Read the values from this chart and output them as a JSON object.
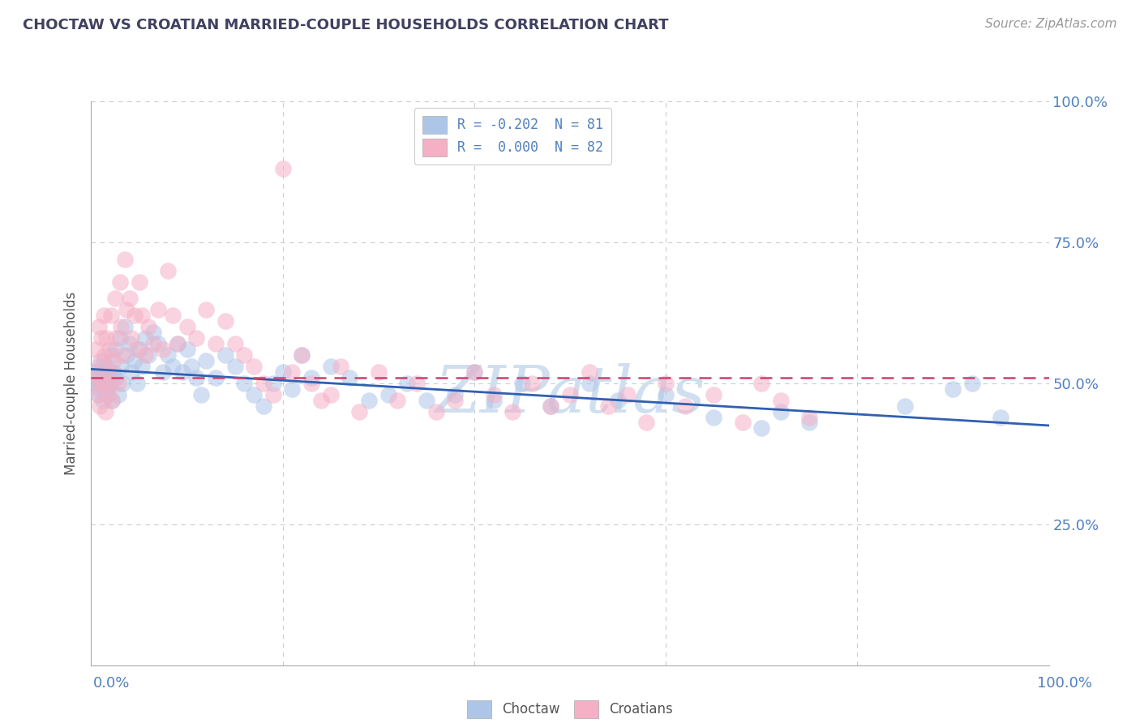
{
  "title": "CHOCTAW VS CROATIAN MARRIED-COUPLE HOUSEHOLDS CORRELATION CHART",
  "source": "Source: ZipAtlas.com",
  "ylabel": "Married-couple Households",
  "choctaw_label": "R = -0.202  N = 81",
  "croatian_label": "R =  0.000  N = 82",
  "legend_footer1": "Choctaw",
  "legend_footer2": "Croatians",
  "choctaw_fill": "#adc6e8",
  "croatian_fill": "#f5b0c5",
  "choctaw_line_color": "#3060b0",
  "croatian_line_color": "#d04070",
  "watermark": "ZIPatlas",
  "watermark_color": "#d0dff0",
  "title_color": "#404060",
  "axis_label_color": "#5080c0",
  "background_color": "#ffffff",
  "grid_color": "#cccccc",
  "ytick_positions": [
    0.25,
    0.5,
    0.75,
    1.0
  ],
  "ytick_labels": [
    "25.0%",
    "50.0%",
    "75.0%",
    "100.0%"
  ],
  "choctaw_trend": [
    0.525,
    0.425
  ],
  "croatian_trend": [
    0.51,
    0.51
  ],
  "choctaw_x": [
    0.003,
    0.005,
    0.006,
    0.007,
    0.008,
    0.009,
    0.01,
    0.011,
    0.012,
    0.013,
    0.014,
    0.015,
    0.016,
    0.017,
    0.018,
    0.019,
    0.02,
    0.021,
    0.022,
    0.023,
    0.025,
    0.026,
    0.028,
    0.03,
    0.031,
    0.033,
    0.035,
    0.037,
    0.04,
    0.042,
    0.045,
    0.048,
    0.05,
    0.053,
    0.056,
    0.06,
    0.065,
    0.07,
    0.075,
    0.08,
    0.085,
    0.09,
    0.095,
    0.1,
    0.105,
    0.11,
    0.115,
    0.12,
    0.13,
    0.14,
    0.15,
    0.16,
    0.17,
    0.18,
    0.19,
    0.2,
    0.21,
    0.22,
    0.23,
    0.25,
    0.27,
    0.29,
    0.31,
    0.33,
    0.35,
    0.38,
    0.4,
    0.42,
    0.45,
    0.48,
    0.52,
    0.55,
    0.6,
    0.65,
    0.7,
    0.72,
    0.75,
    0.85,
    0.9,
    0.92,
    0.95
  ],
  "choctaw_y": [
    0.51,
    0.52,
    0.5,
    0.48,
    0.53,
    0.49,
    0.5,
    0.52,
    0.47,
    0.54,
    0.51,
    0.49,
    0.53,
    0.48,
    0.5,
    0.52,
    0.5,
    0.55,
    0.47,
    0.52,
    0.56,
    0.51,
    0.48,
    0.58,
    0.53,
    0.5,
    0.6,
    0.55,
    0.57,
    0.52,
    0.54,
    0.5,
    0.56,
    0.53,
    0.58,
    0.55,
    0.59,
    0.57,
    0.52,
    0.55,
    0.53,
    0.57,
    0.52,
    0.56,
    0.53,
    0.51,
    0.48,
    0.54,
    0.51,
    0.55,
    0.53,
    0.5,
    0.48,
    0.46,
    0.5,
    0.52,
    0.49,
    0.55,
    0.51,
    0.53,
    0.51,
    0.47,
    0.48,
    0.5,
    0.47,
    0.48,
    0.52,
    0.47,
    0.5,
    0.46,
    0.5,
    0.47,
    0.48,
    0.44,
    0.42,
    0.45,
    0.43,
    0.46,
    0.49,
    0.5,
    0.44
  ],
  "croatian_x": [
    0.003,
    0.005,
    0.006,
    0.007,
    0.008,
    0.009,
    0.01,
    0.011,
    0.012,
    0.013,
    0.014,
    0.015,
    0.016,
    0.017,
    0.018,
    0.019,
    0.02,
    0.021,
    0.022,
    0.023,
    0.025,
    0.026,
    0.028,
    0.03,
    0.031,
    0.033,
    0.035,
    0.037,
    0.04,
    0.042,
    0.045,
    0.048,
    0.05,
    0.053,
    0.056,
    0.06,
    0.065,
    0.07,
    0.075,
    0.08,
    0.085,
    0.09,
    0.1,
    0.11,
    0.12,
    0.13,
    0.14,
    0.15,
    0.16,
    0.17,
    0.18,
    0.19,
    0.2,
    0.21,
    0.22,
    0.23,
    0.24,
    0.25,
    0.26,
    0.28,
    0.3,
    0.32,
    0.34,
    0.36,
    0.38,
    0.4,
    0.42,
    0.44,
    0.46,
    0.48,
    0.5,
    0.52,
    0.54,
    0.56,
    0.58,
    0.6,
    0.62,
    0.65,
    0.68,
    0.7,
    0.72,
    0.75
  ],
  "croatian_y": [
    0.52,
    0.56,
    0.5,
    0.48,
    0.6,
    0.46,
    0.54,
    0.58,
    0.5,
    0.62,
    0.55,
    0.45,
    0.58,
    0.48,
    0.52,
    0.56,
    0.5,
    0.62,
    0.47,
    0.54,
    0.65,
    0.58,
    0.5,
    0.68,
    0.6,
    0.55,
    0.72,
    0.63,
    0.65,
    0.58,
    0.62,
    0.56,
    0.68,
    0.62,
    0.55,
    0.6,
    0.57,
    0.63,
    0.56,
    0.7,
    0.62,
    0.57,
    0.6,
    0.58,
    0.63,
    0.57,
    0.61,
    0.57,
    0.55,
    0.53,
    0.5,
    0.48,
    0.88,
    0.52,
    0.55,
    0.5,
    0.47,
    0.48,
    0.53,
    0.45,
    0.52,
    0.47,
    0.5,
    0.45,
    0.47,
    0.52,
    0.48,
    0.45,
    0.5,
    0.46,
    0.48,
    0.52,
    0.46,
    0.48,
    0.43,
    0.5,
    0.46,
    0.48,
    0.43,
    0.5,
    0.47,
    0.44
  ]
}
